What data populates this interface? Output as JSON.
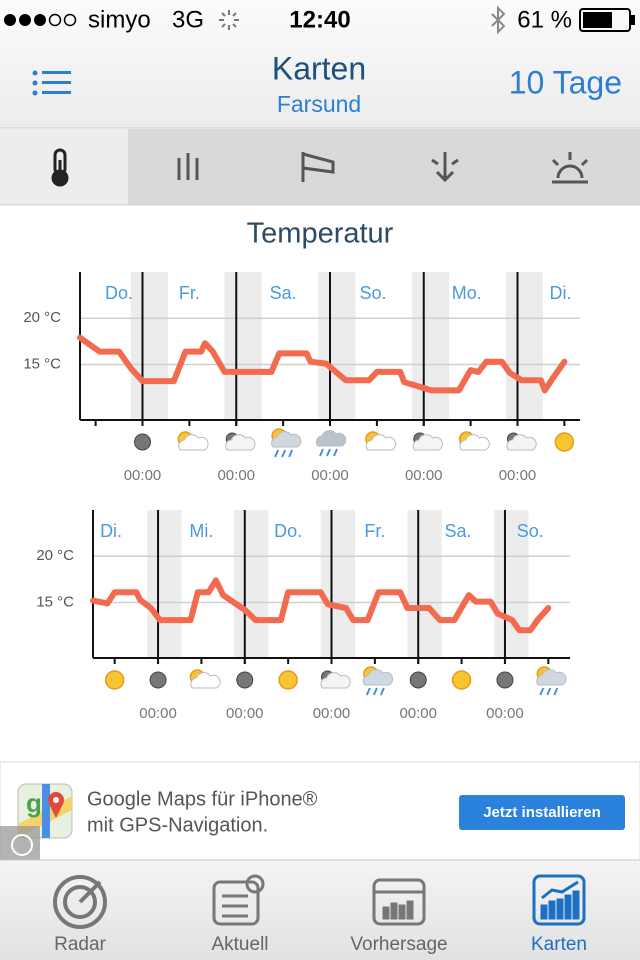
{
  "status": {
    "carrier": "simyo",
    "network": "3G",
    "time": "12:40",
    "battery": "61 %"
  },
  "header": {
    "title": "Karten",
    "subtitle": "Farsund",
    "action": "10 Tage"
  },
  "section_title": "Temperatur",
  "chart_data": [
    {
      "type": "line",
      "days": [
        {
          "label": "Do.",
          "x": 10
        },
        {
          "label": "Fr.",
          "x": 28
        },
        {
          "label": "Sa.",
          "x": 52
        },
        {
          "label": "So.",
          "x": 75
        },
        {
          "label": "Mo.",
          "x": 99
        },
        {
          "label": "Di.",
          "x": 123
        }
      ],
      "xlim": [
        0,
        128
      ],
      "xticks": [
        {
          "value": 16,
          "label": "00:00"
        },
        {
          "value": 40,
          "label": "00:00"
        },
        {
          "value": 64,
          "label": "00:00"
        },
        {
          "value": 88,
          "label": "00:00"
        },
        {
          "value": 112,
          "label": "00:00"
        }
      ],
      "ylim": [
        9,
        25
      ],
      "yticks": [
        {
          "value": 20,
          "label": "20 °C"
        },
        {
          "value": 15,
          "label": "15 °C"
        }
      ],
      "grid": true,
      "series": [
        {
          "color": "#f26b4e",
          "x": [
            0,
            5,
            10,
            13,
            16,
            24,
            27,
            31,
            32,
            34,
            37,
            49,
            51,
            58,
            59,
            63,
            68,
            74,
            76,
            82,
            83,
            90,
            97,
            100,
            102,
            104,
            108,
            110,
            113,
            118,
            119,
            121,
            124
          ],
          "values": [
            17.9,
            16.4,
            16.4,
            14.6,
            13.2,
            13.2,
            16.4,
            16.4,
            17.3,
            16.4,
            14.2,
            14.2,
            16.2,
            16.2,
            15.3,
            15.1,
            13.3,
            13.3,
            14.2,
            14.2,
            13.1,
            12.2,
            12.2,
            14.4,
            14.2,
            15.3,
            15.3,
            14.1,
            13.3,
            13.3,
            12.2,
            13.5,
            15.3
          ]
        }
      ]
    },
    {
      "type": "line",
      "days": [
        {
          "label": "Di.",
          "x": 5
        },
        {
          "label": "Mi.",
          "x": 30
        },
        {
          "label": "Do.",
          "x": 54
        },
        {
          "label": "Fr.",
          "x": 78
        },
        {
          "label": "Sa.",
          "x": 101
        },
        {
          "label": "So.",
          "x": 121
        }
      ],
      "xlim": [
        0,
        132
      ],
      "xticks": [
        {
          "value": 18,
          "label": "00:00"
        },
        {
          "value": 42,
          "label": "00:00"
        },
        {
          "value": 66,
          "label": "00:00"
        },
        {
          "value": 90,
          "label": "00:00"
        },
        {
          "value": 114,
          "label": "00:00"
        }
      ],
      "ylim": [
        9,
        25
      ],
      "yticks": [
        {
          "value": 20,
          "label": "20 °C"
        },
        {
          "value": 15,
          "label": "15 °C"
        }
      ],
      "grid": true,
      "series": [
        {
          "color": "#f26b4e",
          "x": [
            0,
            4,
            6,
            12,
            13,
            16,
            18.5,
            27,
            29,
            32,
            34,
            36,
            42,
            45,
            52,
            54,
            63,
            65,
            70,
            72,
            76,
            79,
            85,
            87,
            93,
            96,
            100,
            104,
            106,
            110,
            112,
            116,
            118,
            121,
            123,
            126
          ],
          "values": [
            15.2,
            14.9,
            16.1,
            16.1,
            15.3,
            14.4,
            13.1,
            13.1,
            16.1,
            16.1,
            17.4,
            15.8,
            14.2,
            13.1,
            13.1,
            16.1,
            16.1,
            14.8,
            14.4,
            13.1,
            13.1,
            16.1,
            16.1,
            14.4,
            14.4,
            13.1,
            13.1,
            15.8,
            15.1,
            15.1,
            13.8,
            13.1,
            12.0,
            12.0,
            13.1,
            14.4
          ]
        }
      ]
    }
  ],
  "ad": {
    "title": "Google Maps für iPhone®",
    "subtitle": "mit GPS-Navigation.",
    "button": "Jetzt installieren"
  },
  "tabbar": {
    "items": [
      "Radar",
      "Aktuell",
      "Vorhersage",
      "Karten"
    ]
  }
}
